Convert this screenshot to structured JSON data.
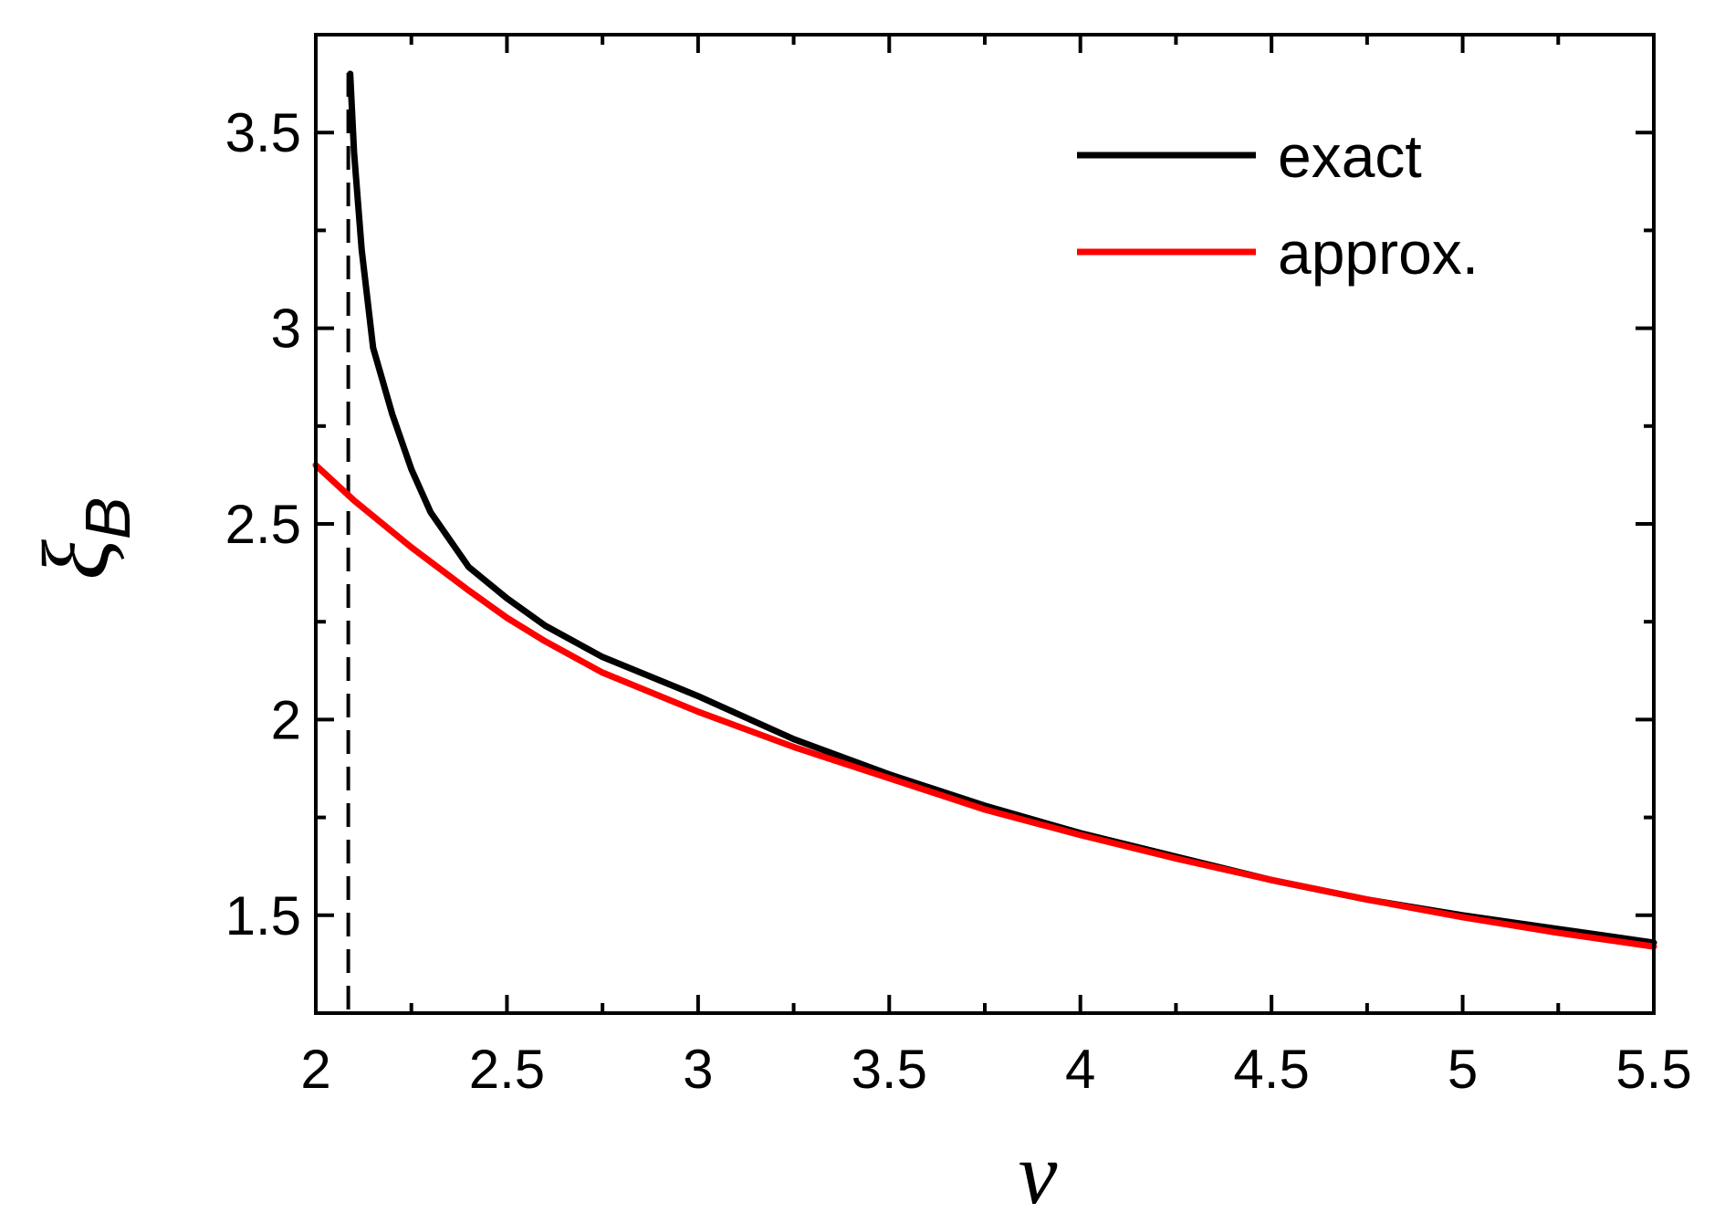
{
  "chart_data": {
    "type": "line",
    "title": "",
    "xlabel": "ν",
    "ylabel": {
      "symbol": "ξ",
      "subscript": "B"
    },
    "xlim": [
      2.0,
      5.5
    ],
    "ylim": [
      1.25,
      3.75
    ],
    "xticks": [
      2,
      2.5,
      3,
      3.5,
      4,
      4.5,
      5,
      5.5
    ],
    "xtick_labels": [
      "2",
      "2.5",
      "3",
      "3.5",
      "4",
      "4.5",
      "5",
      "5.5"
    ],
    "yticks": [
      1.5,
      2,
      2.5,
      3,
      3.5
    ],
    "ytick_labels": [
      "1.5",
      "2",
      "2.5",
      "3",
      "3.5"
    ],
    "x_minor_step": 0.25,
    "y_minor_step": 0.25,
    "grid": false,
    "legend_position": "top-right",
    "vertical_reference_line": {
      "x": 2.085,
      "style": "dashed",
      "color": "#000000"
    },
    "series": [
      {
        "name": "exact",
        "color": "#000000",
        "x": [
          2.09,
          2.1,
          2.12,
          2.15,
          2.2,
          2.25,
          2.3,
          2.4,
          2.5,
          2.6,
          2.75,
          3.0,
          3.25,
          3.5,
          3.75,
          4.0,
          4.25,
          4.5,
          4.75,
          5.0,
          5.25,
          5.5
        ],
        "y": [
          3.65,
          3.45,
          3.2,
          2.95,
          2.78,
          2.64,
          2.53,
          2.39,
          2.31,
          2.24,
          2.16,
          2.06,
          1.95,
          1.86,
          1.78,
          1.71,
          1.65,
          1.59,
          1.54,
          1.5,
          1.465,
          1.43
        ]
      },
      {
        "name": "approx.",
        "color": "#ff0000",
        "x": [
          2.0,
          2.1,
          2.25,
          2.4,
          2.5,
          2.6,
          2.75,
          3.0,
          3.25,
          3.5,
          3.75,
          4.0,
          4.25,
          4.5,
          4.75,
          5.0,
          5.25,
          5.5
        ],
        "y": [
          2.65,
          2.56,
          2.44,
          2.33,
          2.26,
          2.2,
          2.12,
          2.02,
          1.93,
          1.85,
          1.77,
          1.705,
          1.645,
          1.59,
          1.54,
          1.495,
          1.455,
          1.42
        ]
      }
    ]
  }
}
